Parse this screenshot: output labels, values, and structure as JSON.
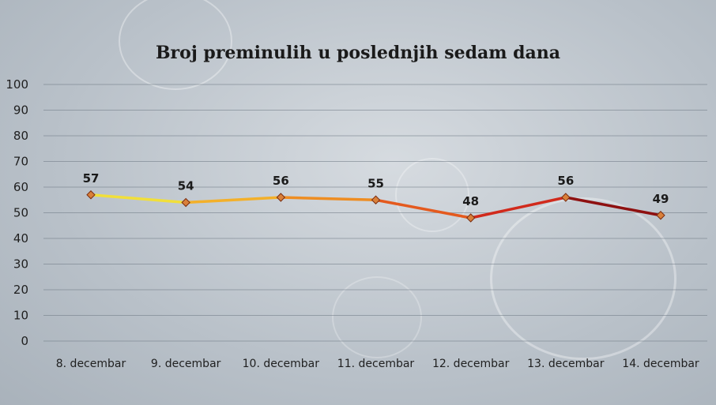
{
  "chart_data": {
    "type": "line",
    "title": "Broj preminulih u poslednjih sedam dana",
    "xlabel": "",
    "ylabel": "",
    "categories": [
      "8. decembar",
      "9. decembar",
      "10. decembar",
      "11. decembar",
      "12. decembar",
      "13. decembar",
      "14. decembar"
    ],
    "values": [
      57,
      54,
      56,
      55,
      48,
      56,
      49
    ],
    "data_labels": [
      "57",
      "54",
      "56",
      "55",
      "48",
      "56",
      "49"
    ],
    "ylim": [
      0,
      100
    ],
    "yticks": [
      0,
      10,
      20,
      30,
      40,
      50,
      60,
      70,
      80,
      90,
      100
    ],
    "grid": true,
    "legend": "none",
    "colors": {
      "segments": [
        "#f1df3a",
        "#f3b02a",
        "#ee8d22",
        "#e45a1e",
        "#d12a1c",
        "#8e1010"
      ],
      "marker_fill": "#d9803a",
      "marker_stroke": "#7a2c0f",
      "gridline": "#6f7a85",
      "background": "#c3cad1"
    }
  }
}
